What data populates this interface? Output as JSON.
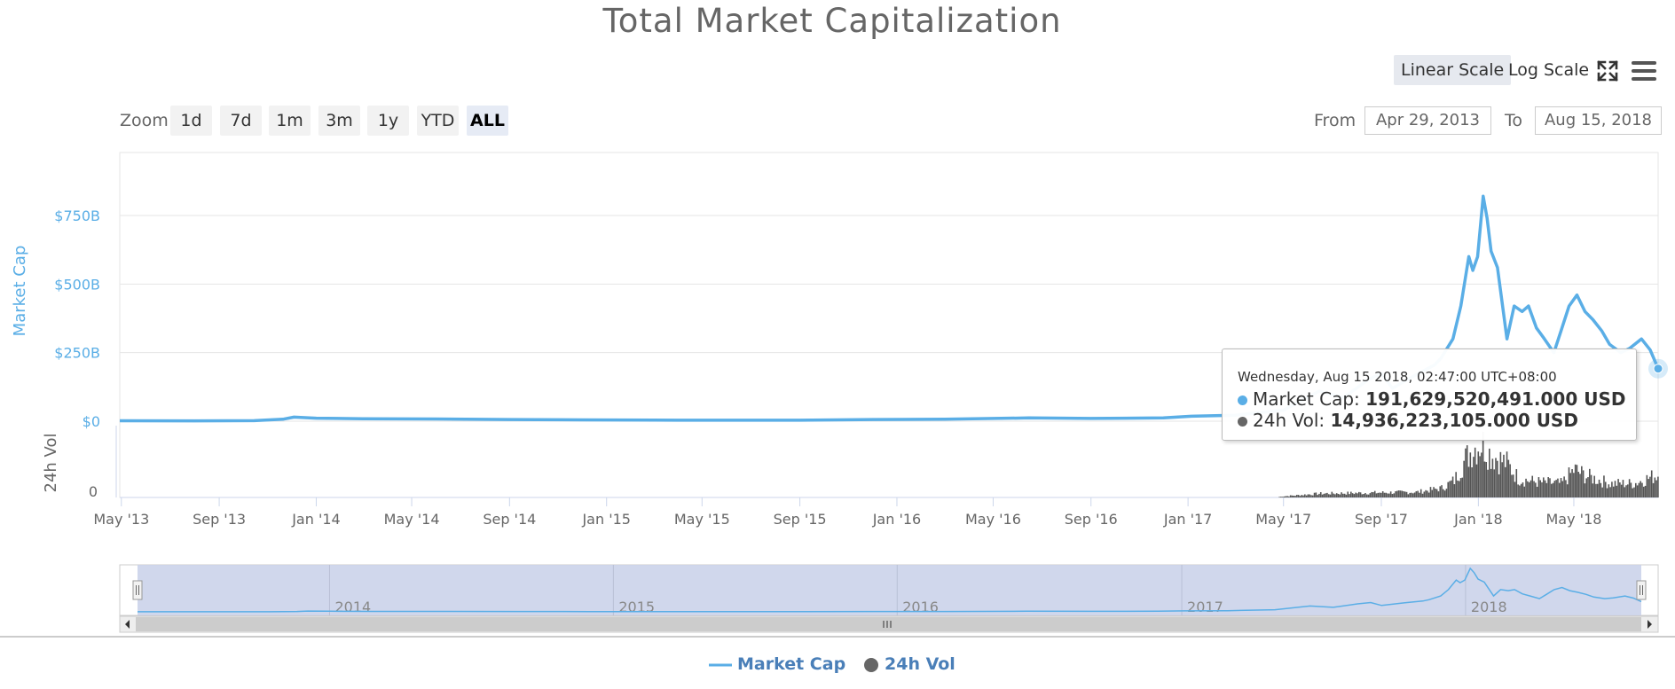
{
  "header": {
    "title": "Total Market Capitalization"
  },
  "toolbar": {
    "linear_scale_label": "Linear Scale",
    "log_scale_label": "Log Scale",
    "active_scale": "Linear Scale",
    "fullscreen_icon": "fullscreen-icon",
    "menu_icon": "hamburger-menu-icon"
  },
  "zoom": {
    "label": "Zoom",
    "buttons": [
      "1d",
      "7d",
      "1m",
      "3m",
      "1y",
      "YTD",
      "ALL"
    ],
    "active": "ALL"
  },
  "range": {
    "from_label": "From",
    "from_value": "Apr 29, 2013",
    "to_label": "To",
    "to_value": "Aug 15, 2018"
  },
  "tooltip": {
    "date": "Wednesday, Aug 15 2018, 02:47:00 UTC+08:00",
    "market_cap_label": "Market Cap:",
    "market_cap_value": "191,629,520,491.000 USD",
    "vol_label": "24h Vol:",
    "vol_value": "14,936,223,105.000 USD"
  },
  "legend": {
    "items": [
      {
        "name": "Market Cap",
        "color": "#5aaee6",
        "icon": "line-icon"
      },
      {
        "name": "24h Vol",
        "color": "#666666",
        "icon": "circle-icon"
      }
    ]
  },
  "colors": {
    "market_cap": "#5aaee6",
    "volume": "#555555",
    "navigator_fill": "#cbd3ea"
  },
  "chart_data": {
    "type": "line",
    "title": "Total Market Capitalization",
    "x_range": [
      "2013-04-29",
      "2018-08-15"
    ],
    "x_ticks": [
      "May '13",
      "Sep '13",
      "Jan '14",
      "May '14",
      "Sep '14",
      "Jan '15",
      "May '15",
      "Sep '15",
      "Jan '16",
      "May '16",
      "Sep '16",
      "Jan '17",
      "May '17",
      "Sep '17",
      "Jan '18",
      "May '18"
    ],
    "y_axis_market_cap": {
      "label": "Market Cap",
      "ticks": [
        "$0",
        "$250B",
        "$500B",
        "$750B"
      ],
      "tick_values": [
        0,
        250,
        500,
        750
      ],
      "unit": "B USD"
    },
    "y_axis_volume": {
      "label": "24h Vol",
      "ticks": [
        "0"
      ]
    },
    "navigator_labels": [
      "2014",
      "2015",
      "2016",
      "2017",
      "2018"
    ],
    "series": [
      {
        "name": "Market Cap",
        "unit": "B USD",
        "points": [
          [
            "2013-04-29",
            1.5
          ],
          [
            "2013-08-01",
            1.3
          ],
          [
            "2013-10-15",
            2
          ],
          [
            "2013-11-20",
            7
          ],
          [
            "2013-12-04",
            15
          ],
          [
            "2014-01-01",
            11
          ],
          [
            "2014-03-01",
            9
          ],
          [
            "2014-06-01",
            8
          ],
          [
            "2014-09-01",
            6
          ],
          [
            "2014-12-01",
            5
          ],
          [
            "2015-03-01",
            4
          ],
          [
            "2015-06-01",
            3.5
          ],
          [
            "2015-09-01",
            3.5
          ],
          [
            "2015-12-01",
            6
          ],
          [
            "2016-03-01",
            7
          ],
          [
            "2016-06-15",
            12
          ],
          [
            "2016-09-01",
            10
          ],
          [
            "2016-12-01",
            12
          ],
          [
            "2017-01-05",
            18
          ],
          [
            "2017-03-01",
            22
          ],
          [
            "2017-05-01",
            40
          ],
          [
            "2017-06-15",
            110
          ],
          [
            "2017-07-15",
            85
          ],
          [
            "2017-08-15",
            150
          ],
          [
            "2017-09-01",
            175
          ],
          [
            "2017-09-15",
            120
          ],
          [
            "2017-10-15",
            170
          ],
          [
            "2017-11-07",
            205
          ],
          [
            "2017-11-15",
            230
          ],
          [
            "2017-11-30",
            300
          ],
          [
            "2017-12-10",
            420
          ],
          [
            "2017-12-20",
            600
          ],
          [
            "2017-12-25",
            550
          ],
          [
            "2017-12-31",
            600
          ],
          [
            "2018-01-07",
            820
          ],
          [
            "2018-01-12",
            740
          ],
          [
            "2018-01-17",
            620
          ],
          [
            "2018-01-25",
            560
          ],
          [
            "2018-02-06",
            300
          ],
          [
            "2018-02-15",
            420
          ],
          [
            "2018-02-25",
            400
          ],
          [
            "2018-03-05",
            420
          ],
          [
            "2018-03-15",
            340
          ],
          [
            "2018-03-25",
            300
          ],
          [
            "2018-04-06",
            250
          ],
          [
            "2018-04-15",
            330
          ],
          [
            "2018-04-25",
            420
          ],
          [
            "2018-05-05",
            460
          ],
          [
            "2018-05-15",
            400
          ],
          [
            "2018-05-25",
            370
          ],
          [
            "2018-06-05",
            330
          ],
          [
            "2018-06-15",
            280
          ],
          [
            "2018-06-29",
            250
          ],
          [
            "2018-07-10",
            265
          ],
          [
            "2018-07-25",
            300
          ],
          [
            "2018-08-05",
            260
          ],
          [
            "2018-08-15",
            191.63
          ]
        ]
      },
      {
        "name": "24h Vol",
        "unit": "B USD",
        "points": [
          [
            "2013-04-29",
            0
          ],
          [
            "2017-04-20",
            0
          ],
          [
            "2017-05-01",
            0.8
          ],
          [
            "2017-06-15",
            2.5
          ],
          [
            "2017-08-15",
            3
          ],
          [
            "2017-10-15",
            3.5
          ],
          [
            "2017-11-15",
            6
          ],
          [
            "2017-12-01",
            11
          ],
          [
            "2017-12-15",
            25
          ],
          [
            "2017-12-25",
            32
          ],
          [
            "2018-01-05",
            35
          ],
          [
            "2018-01-15",
            28
          ],
          [
            "2018-02-05",
            22
          ],
          [
            "2018-02-20",
            12
          ],
          [
            "2018-03-15",
            10
          ],
          [
            "2018-04-15",
            9
          ],
          [
            "2018-05-01",
            18
          ],
          [
            "2018-05-15",
            14
          ],
          [
            "2018-06-15",
            9
          ],
          [
            "2018-07-15",
            9
          ],
          [
            "2018-08-15",
            14.94
          ]
        ]
      }
    ],
    "legend_position": "bottom-center",
    "grid": true
  }
}
